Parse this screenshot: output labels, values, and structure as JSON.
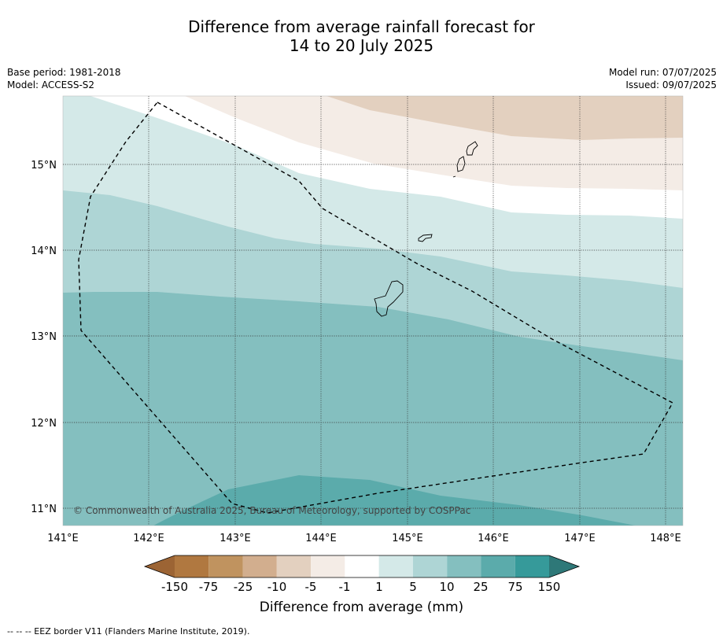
{
  "title_line1": "Difference from average rainfall forecast for",
  "title_line2": "14 to 20 July 2025",
  "base_period": "Base period: 1981-2018",
  "model": "Model: ACCESS-S2",
  "model_run": "Model run: 07/07/2025",
  "issued": "Issued: 09/07/2025",
  "copyright": "© Commonwealth of Australia 2025, Bureau of Meteorology, supported by COSPPac",
  "legend_title": "Difference from average (mm)",
  "eez_note": "--  --  -- EEZ border V11 (Flanders Marine Institute, 2019).",
  "map": {
    "lon_ticks": [
      "141°E",
      "142°E",
      "143°E",
      "144°E",
      "145°E",
      "146°E",
      "147°E",
      "148°E"
    ],
    "lat_ticks": [
      "15°N",
      "14°N",
      "13°N",
      "12°N",
      "11°N"
    ]
  },
  "colorbar": {
    "ticks": [
      "-150",
      "-75",
      "-25",
      "-10",
      "-5",
      "-1",
      "1",
      "5",
      "10",
      "25",
      "75",
      "150"
    ],
    "colors": [
      "#9c6434",
      "#b07840",
      "#c0935f",
      "#d2ae8e",
      "#e3d0bf",
      "#f4ece6",
      "#ffffff",
      "#d4e9e8",
      "#aed5d5",
      "#84bfbf",
      "#5babab",
      "#369a9a",
      "#2e7878"
    ]
  }
}
